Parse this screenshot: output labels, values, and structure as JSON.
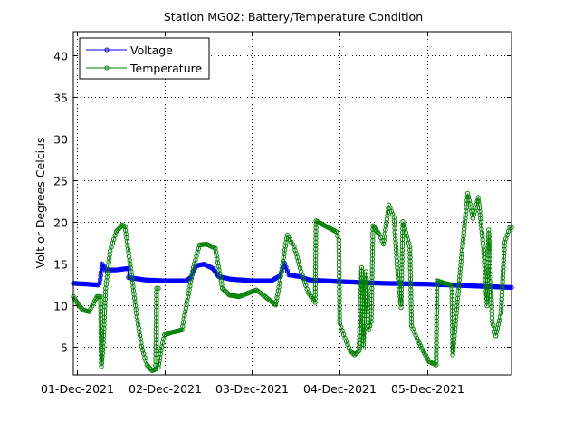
{
  "chart_data": {
    "type": "line",
    "title": "Station MG02: Battery/Temperature Condition",
    "xlabel": "",
    "ylabel": "Volt or Degrees Celcius",
    "x_unit": "days since 01-Dec-2021 00:00",
    "xlim": [
      -0.04,
      4.96
    ],
    "ylim": [
      1.6,
      42.8
    ],
    "grid": true,
    "grid_style": "dotted",
    "legend_position": "top-left",
    "x_ticks": [
      {
        "value": 0,
        "label": "01-Dec-2021"
      },
      {
        "value": 1,
        "label": "02-Dec-2021"
      },
      {
        "value": 2,
        "label": "03-Dec-2021"
      },
      {
        "value": 3,
        "label": "04-Dec-2021"
      },
      {
        "value": 4,
        "label": "05-Dec-2021"
      }
    ],
    "y_ticks": [
      5,
      10,
      15,
      20,
      25,
      30,
      35,
      40
    ],
    "series": [
      {
        "name": "Voltage",
        "color": "#0000ff",
        "marker": "circle",
        "points": [
          [
            -0.04,
            12.6
          ],
          [
            0.12,
            12.5
          ],
          [
            0.24,
            12.4
          ],
          [
            0.26,
            12.6
          ],
          [
            0.29,
            14.9
          ],
          [
            0.33,
            14.2
          ],
          [
            0.45,
            14.2
          ],
          [
            0.59,
            14.4
          ],
          [
            0.59,
            13.3
          ],
          [
            0.78,
            13.0
          ],
          [
            1.0,
            12.9
          ],
          [
            1.25,
            12.9
          ],
          [
            1.3,
            13.3
          ],
          [
            1.36,
            14.7
          ],
          [
            1.45,
            14.9
          ],
          [
            1.55,
            14.4
          ],
          [
            1.62,
            13.4
          ],
          [
            1.75,
            13.1
          ],
          [
            2.0,
            12.9
          ],
          [
            2.22,
            12.9
          ],
          [
            2.32,
            13.5
          ],
          [
            2.37,
            15.0
          ],
          [
            2.42,
            13.6
          ],
          [
            2.55,
            13.4
          ],
          [
            2.65,
            13.0
          ],
          [
            3.0,
            12.8
          ],
          [
            3.5,
            12.6
          ],
          [
            4.0,
            12.5
          ],
          [
            4.5,
            12.3
          ],
          [
            4.96,
            12.1
          ]
        ]
      },
      {
        "name": "Temperature",
        "color": "#008000",
        "marker": "circle",
        "points": [
          [
            -0.04,
            11.0
          ],
          [
            0.02,
            10.0
          ],
          [
            0.07,
            9.4
          ],
          [
            0.14,
            9.2
          ],
          [
            0.19,
            10.2
          ],
          [
            0.23,
            11.0
          ],
          [
            0.27,
            11.0
          ],
          [
            0.28,
            2.6
          ],
          [
            0.3,
            5.0
          ],
          [
            0.33,
            12.0
          ],
          [
            0.38,
            16.5
          ],
          [
            0.45,
            18.8
          ],
          [
            0.52,
            19.6
          ],
          [
            0.55,
            19.4
          ],
          [
            0.62,
            14.0
          ],
          [
            0.68,
            9.0
          ],
          [
            0.74,
            5.0
          ],
          [
            0.8,
            2.8
          ],
          [
            0.86,
            2.1
          ],
          [
            0.9,
            2.3
          ],
          [
            0.91,
            12.0
          ],
          [
            0.93,
            12.0
          ],
          [
            0.93,
            2.5
          ],
          [
            0.96,
            4.5
          ],
          [
            1.0,
            6.4
          ],
          [
            1.08,
            6.7
          ],
          [
            1.2,
            7.0
          ],
          [
            1.26,
            10.5
          ],
          [
            1.33,
            14.5
          ],
          [
            1.4,
            17.2
          ],
          [
            1.48,
            17.3
          ],
          [
            1.58,
            16.8
          ],
          [
            1.66,
            12.0
          ],
          [
            1.74,
            11.2
          ],
          [
            1.85,
            11.0
          ],
          [
            1.95,
            11.4
          ],
          [
            2.05,
            11.8
          ],
          [
            2.15,
            11.0
          ],
          [
            2.27,
            10.0
          ],
          [
            2.32,
            13.0
          ],
          [
            2.4,
            18.4
          ],
          [
            2.48,
            17.0
          ],
          [
            2.56,
            14.0
          ],
          [
            2.64,
            11.5
          ],
          [
            2.72,
            10.3
          ],
          [
            2.73,
            20.1
          ],
          [
            2.85,
            19.4
          ],
          [
            2.96,
            18.8
          ],
          [
            2.99,
            17.8
          ],
          [
            3.0,
            7.8
          ],
          [
            3.06,
            6.0
          ],
          [
            3.12,
            4.5
          ],
          [
            3.17,
            4.0
          ],
          [
            3.22,
            4.5
          ],
          [
            3.25,
            14.5
          ],
          [
            3.27,
            4.8
          ],
          [
            3.3,
            14.0
          ],
          [
            3.33,
            7.0
          ],
          [
            3.36,
            8.0
          ],
          [
            3.38,
            19.5
          ],
          [
            3.45,
            18.5
          ],
          [
            3.5,
            17.3
          ],
          [
            3.56,
            22.0
          ],
          [
            3.62,
            20.5
          ],
          [
            3.66,
            14.0
          ],
          [
            3.7,
            9.7
          ],
          [
            3.72,
            20.0
          ],
          [
            3.8,
            17.0
          ],
          [
            3.82,
            7.5
          ],
          [
            3.88,
            6.0
          ],
          [
            3.95,
            4.5
          ],
          [
            4.02,
            3.2
          ],
          [
            4.1,
            2.8
          ],
          [
            4.11,
            12.9
          ],
          [
            4.2,
            12.6
          ],
          [
            4.28,
            12.4
          ],
          [
            4.29,
            4.0
          ],
          [
            4.33,
            9.0
          ],
          [
            4.4,
            17.0
          ],
          [
            4.46,
            23.4
          ],
          [
            4.52,
            20.4
          ],
          [
            4.58,
            22.9
          ],
          [
            4.64,
            17.0
          ],
          [
            4.68,
            9.9
          ],
          [
            4.7,
            19.0
          ],
          [
            4.74,
            8.0
          ],
          [
            4.78,
            6.3
          ],
          [
            4.84,
            9.0
          ],
          [
            4.88,
            17.5
          ],
          [
            4.94,
            19.3
          ],
          [
            4.96,
            19.3
          ]
        ]
      }
    ]
  }
}
